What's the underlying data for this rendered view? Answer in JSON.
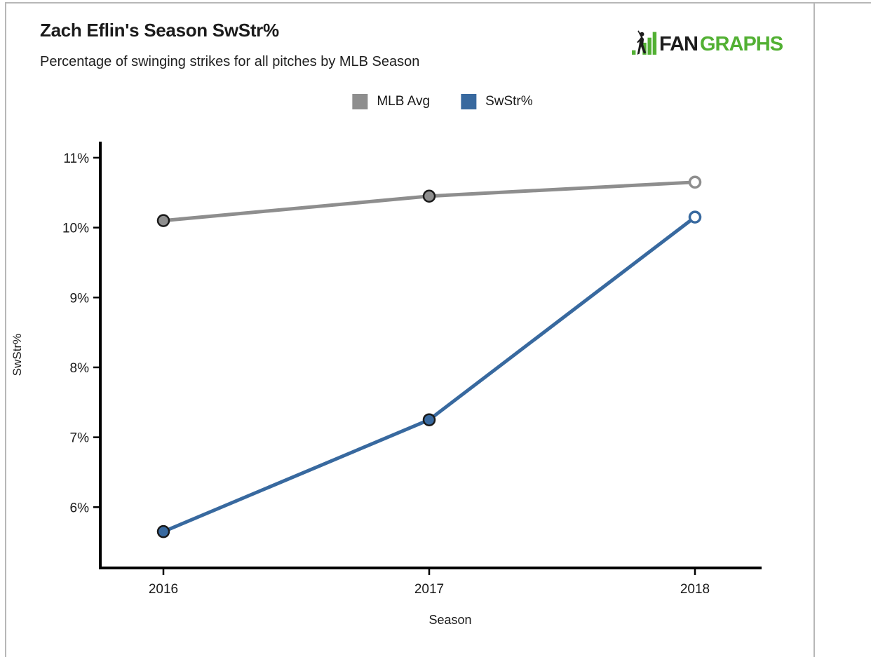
{
  "frame": {
    "border_color": "#b7b7b7"
  },
  "header": {
    "title": "Zach Eflin's Season SwStr%",
    "subtitle": "Percentage of swinging strikes for all pitches by MLB Season"
  },
  "logo": {
    "fan": "FAN",
    "graphs": "GRAPHS",
    "ink": "#1d1d1d",
    "green": "#52b033"
  },
  "chart_data": {
    "type": "line",
    "categories": [
      "2016",
      "2017",
      "2018"
    ],
    "series": [
      {
        "name": "MLB Avg",
        "color": "#8e8e8e",
        "values": [
          10.1,
          10.45,
          10.65
        ]
      },
      {
        "name": "SwStr%",
        "color": "#38699f",
        "values": [
          5.65,
          7.25,
          10.15
        ]
      }
    ],
    "xlabel": "Season",
    "ylabel": "SwStr%",
    "ylim": [
      5.13,
      11.23
    ],
    "yticks": [
      6,
      7,
      8,
      9,
      10,
      11
    ],
    "ytick_suffix": "%",
    "grid": false,
    "legend_position": "top-center",
    "last_point_marker": "open",
    "marker_outline_color": "#1a1a1a",
    "axis_color": "#000000",
    "text_color": "#1a1a1a"
  }
}
